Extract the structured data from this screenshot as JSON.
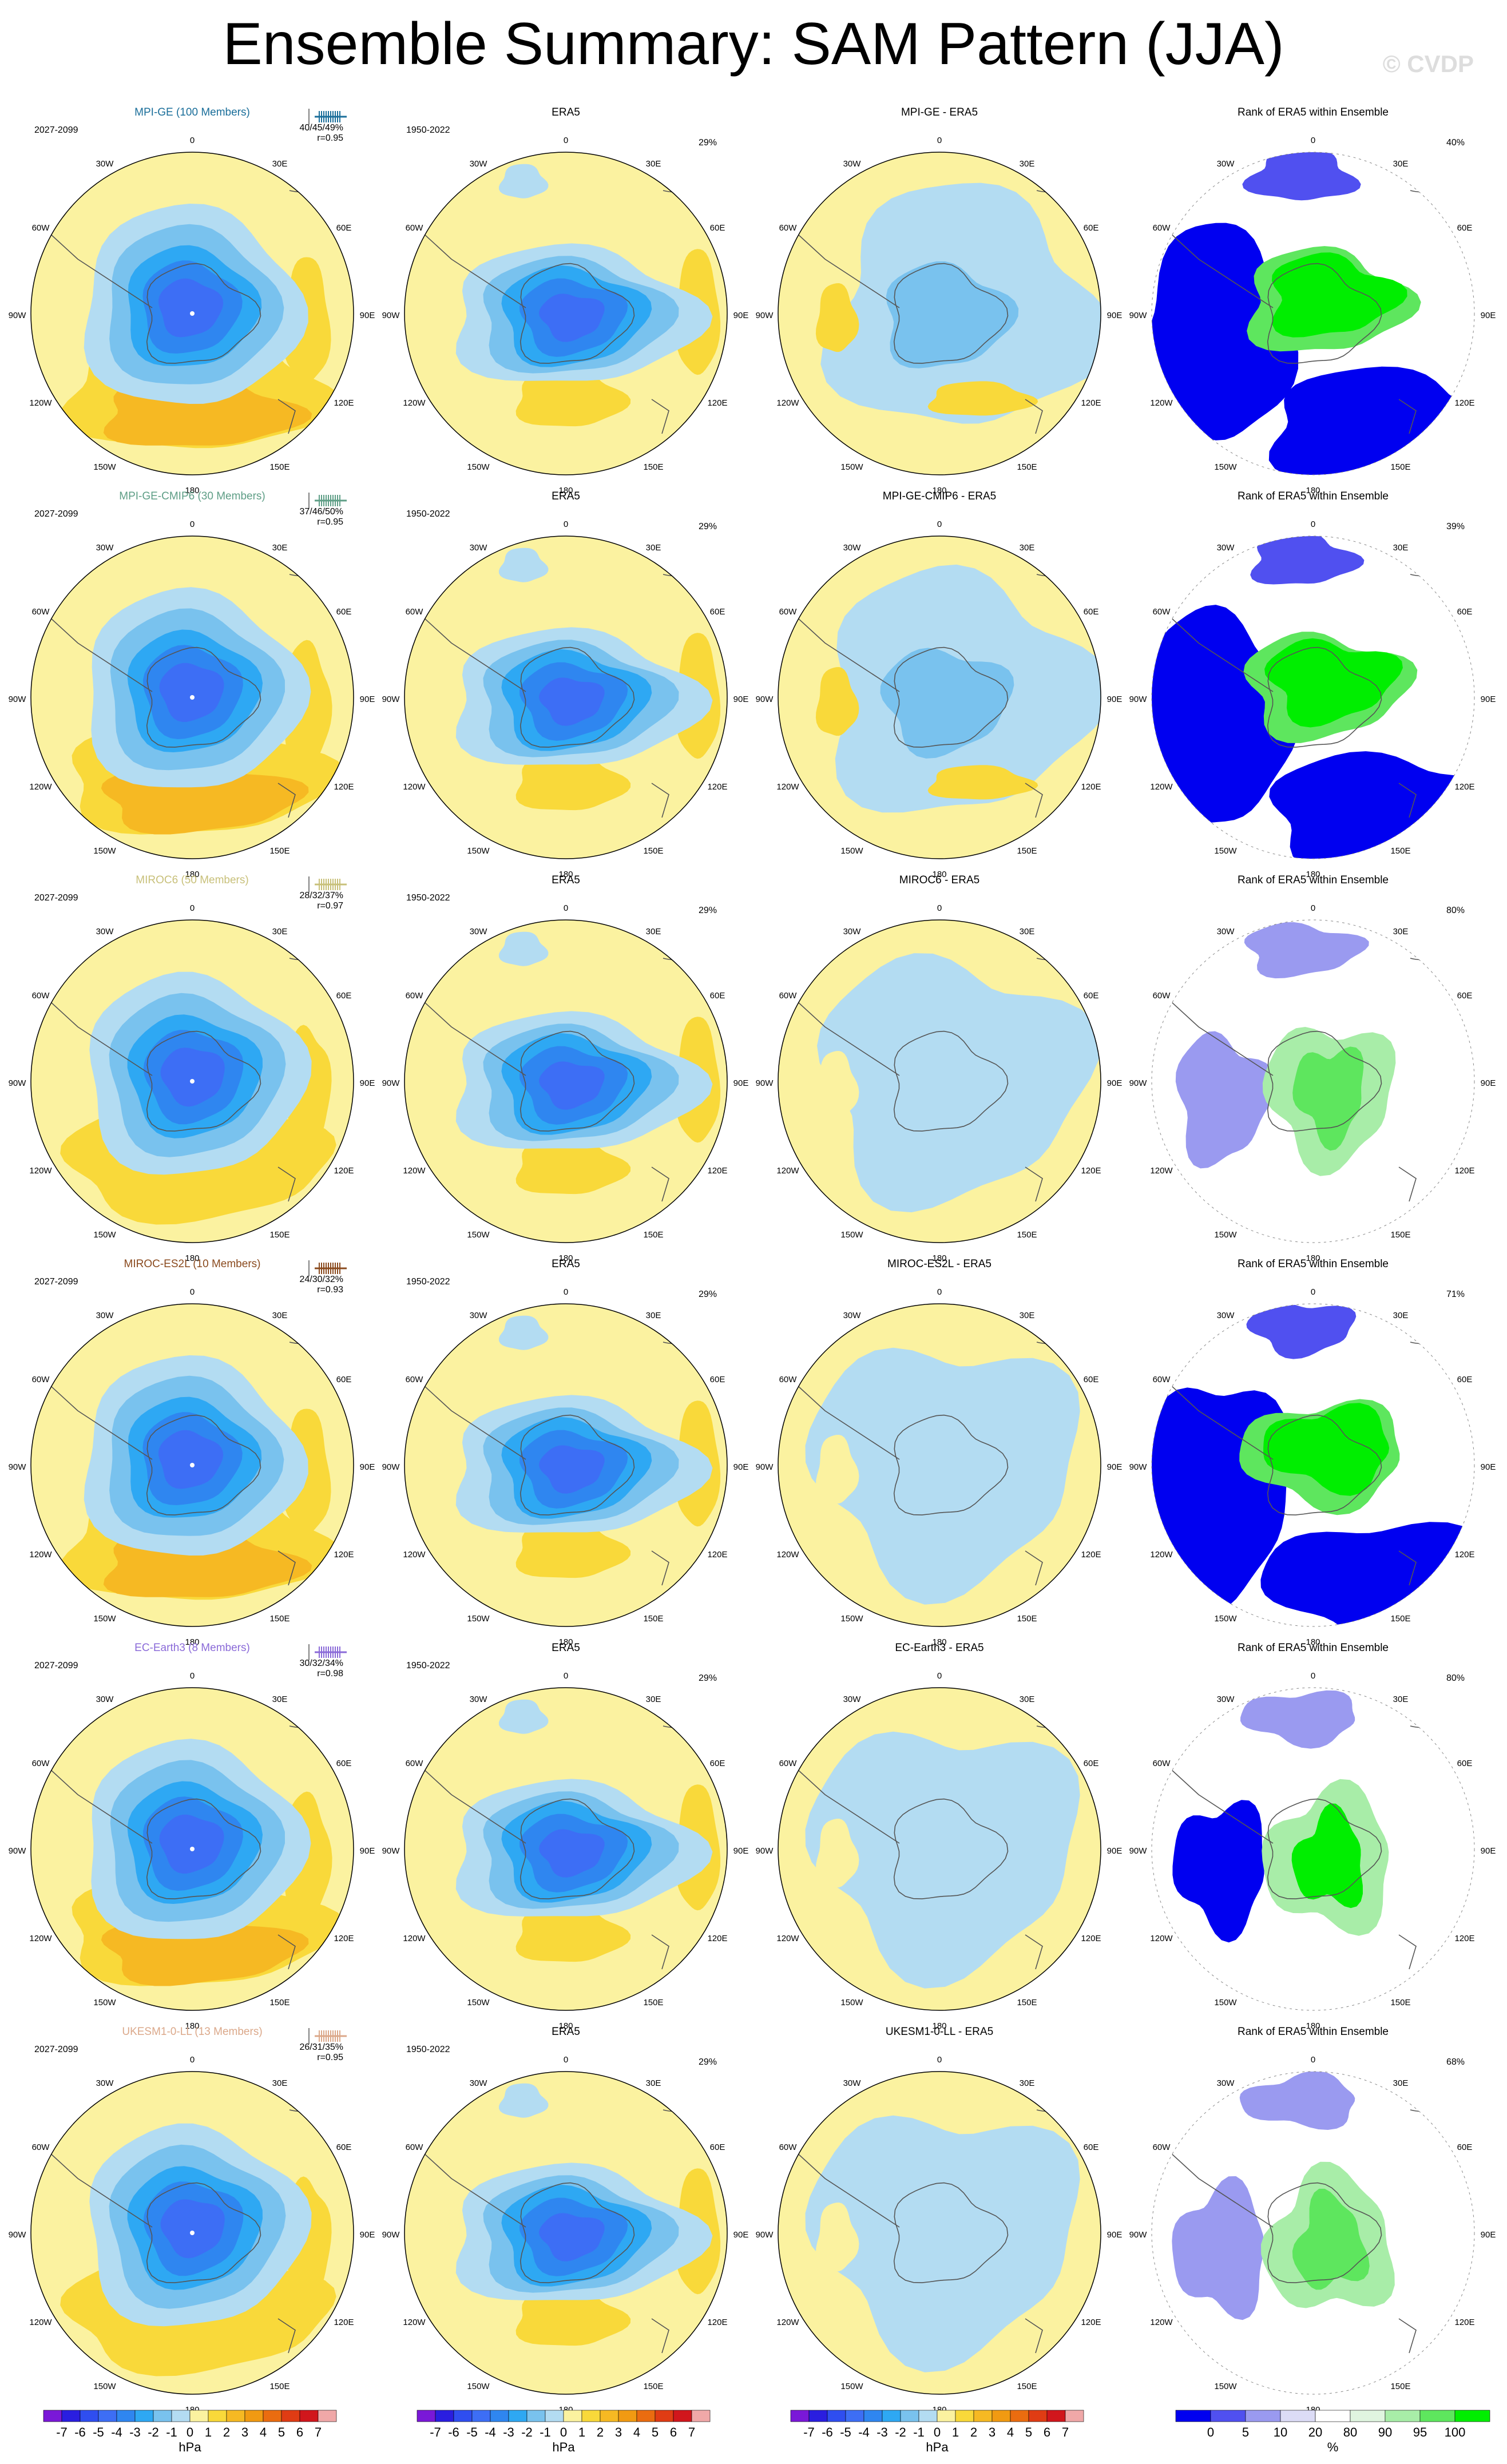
{
  "title": "Ensemble Summary: SAM Pattern (JJA)",
  "watermark": "© CVDP",
  "colors": {
    "anomaly_scale": [
      "#7a18d8",
      "#2a1ee0",
      "#2f4ef0",
      "#3d6ef5",
      "#2f86f0",
      "#2ea8f3",
      "#79c2ee",
      "#b3dcf2",
      "#fbf2a0",
      "#f9d93a",
      "#f6b923",
      "#f19a12",
      "#ea6c10",
      "#e03c14",
      "#d1161c",
      "#f0a8a8"
    ],
    "rank_scale": [
      "#0000f0",
      "#5050f0",
      "#9a9af0",
      "#dcdcf6",
      "#ffffff",
      "#e0f5e0",
      "#a8eda8",
      "#5ee65e",
      "#00ee00"
    ],
    "model_colors": [
      "#1a6e9a",
      "#5e9e86",
      "#c8c07a",
      "#8a4a1e",
      "#8a6ad8",
      "#dba88a"
    ]
  },
  "lon_labels": [
    "0",
    "30E",
    "60E",
    "90E",
    "120E",
    "150E",
    "180",
    "150W",
    "120W",
    "90W",
    "60W",
    "30W"
  ],
  "rows": [
    {
      "model": "MPI-GE (100 Members)",
      "period": "2027-2099",
      "pct": "40/45/49%",
      "r": "r=0.95",
      "era_label": "ERA5",
      "era_period": "1950-2022",
      "era_pct": "29%",
      "diff_title": "MPI-GE - ERA5",
      "rank_title": "Rank of ERA5 within Ensemble",
      "rank_pct": "40%"
    },
    {
      "model": "MPI-GE-CMIP6 (30 Members)",
      "period": "2027-2099",
      "pct": "37/46/50%",
      "r": "r=0.95",
      "era_label": "ERA5",
      "era_period": "1950-2022",
      "era_pct": "29%",
      "diff_title": "MPI-GE-CMIP6 - ERA5",
      "rank_title": "Rank of ERA5 within Ensemble",
      "rank_pct": "39%"
    },
    {
      "model": "MIROC6 (50 Members)",
      "period": "2027-2099",
      "pct": "28/32/37%",
      "r": "r=0.97",
      "era_label": "ERA5",
      "era_period": "1950-2022",
      "era_pct": "29%",
      "diff_title": "MIROC6 - ERA5",
      "rank_title": "Rank of ERA5 within Ensemble",
      "rank_pct": "80%"
    },
    {
      "model": "MIROC-ES2L (10 Members)",
      "period": "2027-2099",
      "pct": "24/30/32%",
      "r": "r=0.93",
      "era_label": "ERA5",
      "era_period": "1950-2022",
      "era_pct": "29%",
      "diff_title": "MIROC-ES2L - ERA5",
      "rank_title": "Rank of ERA5 within Ensemble",
      "rank_pct": "71%"
    },
    {
      "model": "EC-Earth3 (8 Members)",
      "period": "2027-2099",
      "pct": "30/32/34%",
      "r": "r=0.98",
      "era_label": "ERA5",
      "era_period": "1950-2022",
      "era_pct": "29%",
      "diff_title": "EC-Earth3 - ERA5",
      "rank_title": "Rank of ERA5 within Ensemble",
      "rank_pct": "80%"
    },
    {
      "model": "UKESM1-0-LL (13 Members)",
      "period": "2027-2099",
      "pct": "26/31/35%",
      "r": "r=0.95",
      "era_label": "ERA5",
      "era_period": "1950-2022",
      "era_pct": "29%",
      "diff_title": "UKESM1-0-LL - ERA5",
      "rank_title": "Rank of ERA5 within Ensemble",
      "rank_pct": "68%"
    }
  ],
  "colorbars": {
    "anomaly": {
      "ticks": [
        "-7",
        "-6",
        "-5",
        "-4",
        "-3",
        "-2",
        "-1",
        "0",
        "1",
        "2",
        "3",
        "4",
        "5",
        "6",
        "7"
      ],
      "unit": "hPa"
    },
    "rank": {
      "ticks": [
        "0",
        "5",
        "10",
        "20",
        "80",
        "90",
        "95",
        "100"
      ],
      "unit": "%"
    }
  },
  "chart_data": {
    "type": "heatmap",
    "title": "Ensemble Summary: SAM Pattern (JJA)",
    "panels_per_row": [
      "model ensemble SAM pattern",
      "ERA5",
      "model - ERA5",
      "Rank of ERA5 within Ensemble"
    ],
    "anomaly_levels_hPa": [
      -7,
      -6,
      -5,
      -4,
      -3,
      -2,
      -1,
      0,
      1,
      2,
      3,
      4,
      5,
      6,
      7
    ],
    "rank_levels_pct": [
      0,
      5,
      10,
      20,
      80,
      90,
      95,
      100
    ],
    "models": [
      "MPI-GE",
      "MPI-GE-CMIP6",
      "MIROC6",
      "MIROC-ES2L",
      "EC-Earth3",
      "UKESM1-0-LL"
    ],
    "model_pc_variance_pct": [
      "40/45/49",
      "37/46/50",
      "28/32/37",
      "24/30/32",
      "30/32/34",
      "26/31/35"
    ],
    "pattern_correlation": [
      0.95,
      0.95,
      0.97,
      0.93,
      0.98,
      0.95
    ],
    "era5_pc_variance_pct": [
      29,
      29,
      29,
      29,
      29,
      29
    ],
    "rank_pct_label": [
      40,
      39,
      80,
      71,
      80,
      68
    ]
  }
}
